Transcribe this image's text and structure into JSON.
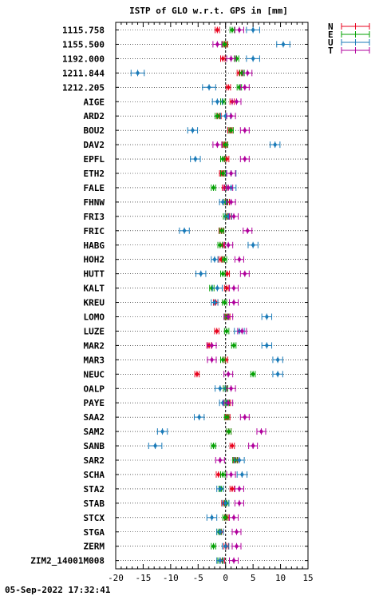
{
  "chart_data": {
    "type": "scatter",
    "title": "ISTP of GLO w.r.t. GPS in [mm]",
    "xlim": [
      -20,
      15
    ],
    "xticks": [
      -20,
      -15,
      -10,
      -5,
      0,
      5,
      10,
      15
    ],
    "grid": "horizontal-dotted",
    "legend_position": "top-right",
    "reference_line_x": 0,
    "categories": [
      "1115.758",
      "1155.500",
      "1192.000",
      "1211.844",
      "1212.205",
      "AIGE",
      "ARD2",
      "BOU2",
      "DAV2",
      "EPFL",
      "ETH2",
      "FALE",
      "FHNW",
      "FRI3",
      "FRIC",
      "HABG",
      "HOH2",
      "HUTT",
      "KALT",
      "KREU",
      "LOMO",
      "LUZE",
      "MAR2",
      "MAR3",
      "NEUC",
      "OALP",
      "PAYE",
      "SAA2",
      "SAM2",
      "SANB",
      "SAR2",
      "SCHA",
      "STA2",
      "STAB",
      "STCX",
      "STGA",
      "ZERM",
      "ZIM2_14001M008"
    ],
    "series": [
      {
        "name": "N",
        "color": "#e8001c",
        "values": [
          -1.5,
          0,
          -0.5,
          2.5,
          0.5,
          1.2,
          -1.2,
          0.8,
          -0.2,
          0.2,
          -0.7,
          -0.2,
          0.3,
          0.6,
          -0.8,
          -0.6,
          -0.8,
          0.3,
          0.2,
          -1.8,
          0.4,
          -1.6,
          -3,
          0,
          -5.2,
          0,
          0.5,
          0.4,
          0.6,
          1.2,
          1.8,
          -1.3,
          1.2,
          -0.3,
          0.2,
          -0.8,
          0.1,
          -0.6
        ],
        "errors": [
          0.4,
          0.4,
          0.4,
          0.4,
          0.4,
          0.4,
          0.4,
          0.4,
          0.4,
          0.4,
          0.4,
          0.4,
          0.4,
          0.4,
          0.4,
          0.4,
          0.4,
          0.4,
          0.4,
          0.4,
          0.4,
          0.4,
          0.4,
          0.4,
          0.4,
          0.4,
          0.4,
          0.4,
          0.4,
          0.4,
          0.4,
          0.4,
          0.4,
          0.4,
          0.4,
          0.4,
          0.4,
          0.4
        ]
      },
      {
        "name": "E",
        "color": "#00a000",
        "values": [
          1.2,
          -0.2,
          2,
          3,
          2.5,
          -0.5,
          -1.5,
          1,
          0,
          -0.5,
          -0.5,
          -2.2,
          0,
          0,
          -0.7,
          -1,
          -0.2,
          -0.5,
          -2.5,
          -0.2,
          0.2,
          0.2,
          1.5,
          -0.5,
          5,
          0,
          0.3,
          0.2,
          0.6,
          -2.2,
          1.7,
          -0.5,
          -0.8,
          0.2,
          -0.1,
          -1.2,
          -2.2,
          -1
        ],
        "errors": [
          0.4,
          0.4,
          0.4,
          0.4,
          0.4,
          0.4,
          0.4,
          0.4,
          0.4,
          0.4,
          0.4,
          0.4,
          0.4,
          0.4,
          0.4,
          0.4,
          0.4,
          0.4,
          0.4,
          0.4,
          0.4,
          0.4,
          0.4,
          0.4,
          0.4,
          0.4,
          0.4,
          0.4,
          0.4,
          0.4,
          0.4,
          0.4,
          0.4,
          0.4,
          0.4,
          0.4,
          0.4,
          0.4
        ]
      },
      {
        "name": "U",
        "color": "#1a7ab8",
        "values": [
          5,
          10.5,
          5,
          -16,
          -3,
          -1.5,
          0,
          -6,
          9,
          -5.5,
          1,
          1,
          -0.5,
          0.5,
          -7.5,
          5,
          -2,
          -4.5,
          -1.5,
          -2,
          7.5,
          2.5,
          7.5,
          9.5,
          9.5,
          -1,
          -0.5,
          -4.8,
          -11.5,
          -12.8,
          2.5,
          3,
          -1,
          0,
          -2.5,
          -1,
          0,
          -1
        ],
        "errors": [
          1.2,
          1.2,
          1.2,
          1.2,
          1.2,
          0.9,
          0.9,
          0.9,
          0.9,
          0.9,
          0.9,
          0.9,
          0.6,
          0.6,
          0.9,
          0.9,
          0.6,
          0.9,
          0.9,
          0.6,
          0.9,
          0.9,
          0.9,
          0.9,
          0.9,
          0.9,
          0.6,
          0.9,
          0.9,
          1.2,
          0.9,
          0.9,
          0.6,
          0.6,
          0.9,
          0.6,
          0.6,
          0.6
        ]
      },
      {
        "name": "T",
        "color": "#b0009c",
        "values": [
          2.5,
          -1.5,
          1,
          4,
          3.5,
          2,
          1,
          3.5,
          -1.5,
          3.5,
          1,
          0.5,
          1,
          1.5,
          4,
          0.5,
          2.5,
          3.5,
          1.5,
          1.5,
          0.5,
          3,
          -2.5,
          -2.5,
          0.5,
          1,
          0.5,
          3.5,
          6.5,
          5,
          -1,
          1,
          2.5,
          2.5,
          1.5,
          2,
          2,
          1.5
        ],
        "errors": [
          0.8,
          0.8,
          0.8,
          0.8,
          0.8,
          0.8,
          0.8,
          0.8,
          0.8,
          0.8,
          0.8,
          0.8,
          0.8,
          0.8,
          0.8,
          0.8,
          0.8,
          0.8,
          0.8,
          0.8,
          0.8,
          0.8,
          0.8,
          0.8,
          0.8,
          0.8,
          0.8,
          0.8,
          0.8,
          0.8,
          0.8,
          0.8,
          0.8,
          0.8,
          0.8,
          0.8,
          0.8,
          0.8
        ]
      }
    ]
  },
  "footer": {
    "timestamp": "05-Sep-2022 17:32:41"
  }
}
